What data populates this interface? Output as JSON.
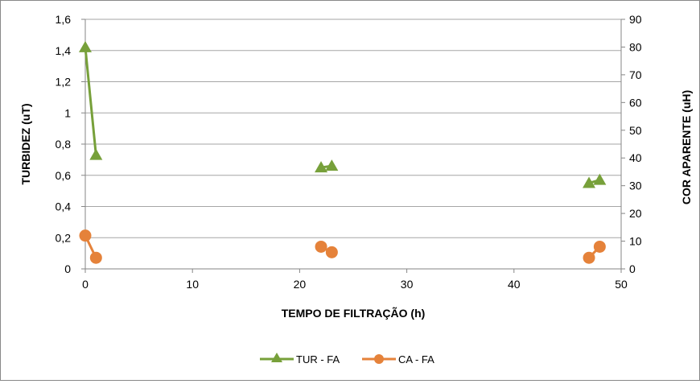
{
  "chart_data": {
    "type": "line",
    "xlabel": "TEMPO DE FILTRAÇÃO (h)",
    "ylabel": "TURBIDEZ (uT)",
    "y2label": "COR APARENTE (uH)",
    "xlim": [
      0,
      50
    ],
    "ylim": [
      0,
      1.6
    ],
    "y2lim": [
      0,
      90
    ],
    "x_ticks": [
      0,
      10,
      20,
      30,
      40,
      50
    ],
    "y_ticks": [
      "0",
      "0,2",
      "0,4",
      "0,6",
      "0,8",
      "1",
      "1,2",
      "1,4",
      "1,6"
    ],
    "y2_ticks": [
      "0",
      "10",
      "20",
      "30",
      "40",
      "50",
      "60",
      "70",
      "80",
      "90"
    ],
    "grid": true,
    "legend_position": "bottom",
    "series": [
      {
        "name": "TUR - FA",
        "axis": "left",
        "marker": "triangle",
        "color": "#77a03a",
        "x": [
          0,
          1,
          22,
          23,
          47,
          48
        ],
        "y": [
          1.42,
          0.73,
          0.65,
          0.66,
          0.55,
          0.57
        ]
      },
      {
        "name": "CA - FA",
        "axis": "right",
        "marker": "circle",
        "color": "#e5823a",
        "x": [
          0,
          1,
          22,
          23,
          47,
          48
        ],
        "y": [
          12,
          4,
          8,
          6,
          4,
          8
        ]
      }
    ]
  }
}
